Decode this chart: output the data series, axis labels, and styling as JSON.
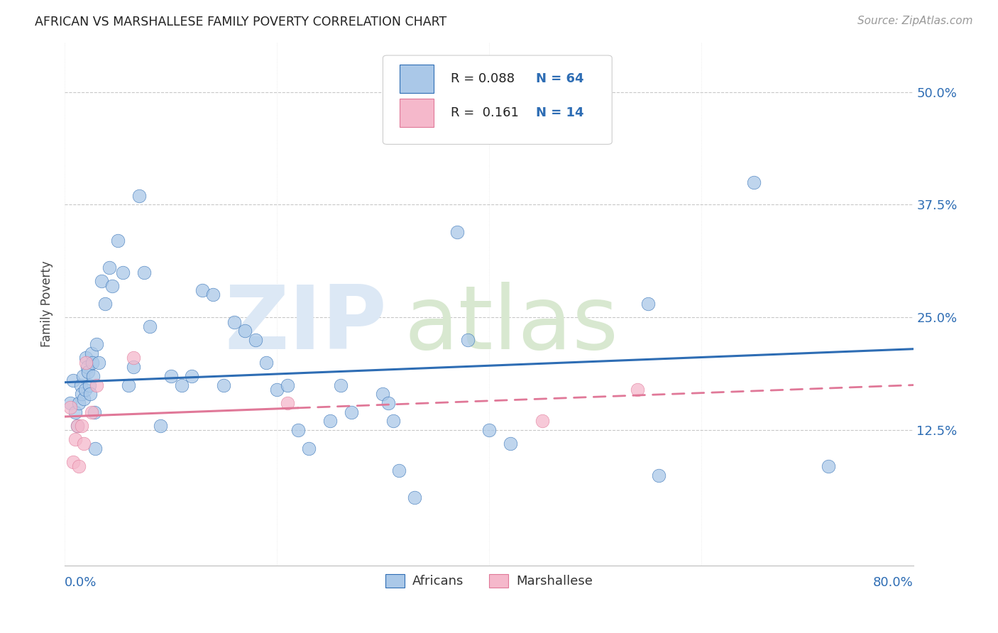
{
  "title": "AFRICAN VS MARSHALLESE FAMILY POVERTY CORRELATION CHART",
  "source": "Source: ZipAtlas.com",
  "ylabel": "Family Poverty",
  "ytick_labels": [
    "12.5%",
    "25.0%",
    "37.5%",
    "50.0%"
  ],
  "ytick_values": [
    0.125,
    0.25,
    0.375,
    0.5
  ],
  "xlim": [
    0.0,
    0.8
  ],
  "ylim": [
    -0.025,
    0.555
  ],
  "africans_color": "#aac8e8",
  "marshallese_color": "#f5b8cb",
  "line_african_color": "#2e6db4",
  "line_marshallese_color": "#e07898",
  "africans_x": [
    0.005,
    0.008,
    0.01,
    0.012,
    0.013,
    0.015,
    0.016,
    0.017,
    0.018,
    0.019,
    0.02,
    0.021,
    0.022,
    0.023,
    0.024,
    0.025,
    0.026,
    0.027,
    0.028,
    0.029,
    0.03,
    0.032,
    0.035,
    0.038,
    0.042,
    0.045,
    0.05,
    0.055,
    0.06,
    0.065,
    0.07,
    0.075,
    0.08,
    0.09,
    0.1,
    0.11,
    0.12,
    0.13,
    0.14,
    0.15,
    0.16,
    0.17,
    0.18,
    0.19,
    0.2,
    0.21,
    0.22,
    0.23,
    0.25,
    0.26,
    0.27,
    0.3,
    0.305,
    0.31,
    0.315,
    0.33,
    0.37,
    0.38,
    0.4,
    0.42,
    0.55,
    0.56,
    0.65,
    0.72
  ],
  "africans_y": [
    0.155,
    0.18,
    0.145,
    0.13,
    0.155,
    0.175,
    0.165,
    0.185,
    0.16,
    0.17,
    0.205,
    0.195,
    0.19,
    0.175,
    0.165,
    0.21,
    0.2,
    0.185,
    0.145,
    0.105,
    0.22,
    0.2,
    0.29,
    0.265,
    0.305,
    0.285,
    0.335,
    0.3,
    0.175,
    0.195,
    0.385,
    0.3,
    0.24,
    0.13,
    0.185,
    0.175,
    0.185,
    0.28,
    0.275,
    0.175,
    0.245,
    0.235,
    0.225,
    0.2,
    0.17,
    0.175,
    0.125,
    0.105,
    0.135,
    0.175,
    0.145,
    0.165,
    0.155,
    0.135,
    0.08,
    0.05,
    0.345,
    0.225,
    0.125,
    0.11,
    0.265,
    0.075,
    0.4,
    0.085
  ],
  "marshallese_x": [
    0.005,
    0.008,
    0.01,
    0.012,
    0.013,
    0.016,
    0.018,
    0.02,
    0.025,
    0.03,
    0.065,
    0.21,
    0.45,
    0.54
  ],
  "marshallese_y": [
    0.15,
    0.09,
    0.115,
    0.13,
    0.085,
    0.13,
    0.11,
    0.2,
    0.145,
    0.175,
    0.205,
    0.155,
    0.135,
    0.17
  ],
  "african_line_x0": 0.0,
  "african_line_y0": 0.178,
  "african_line_x1": 0.8,
  "african_line_y1": 0.215,
  "marshallese_line_x0": 0.0,
  "marshallese_line_y0": 0.14,
  "marshallese_line_x1": 0.8,
  "marshallese_line_y1": 0.175
}
